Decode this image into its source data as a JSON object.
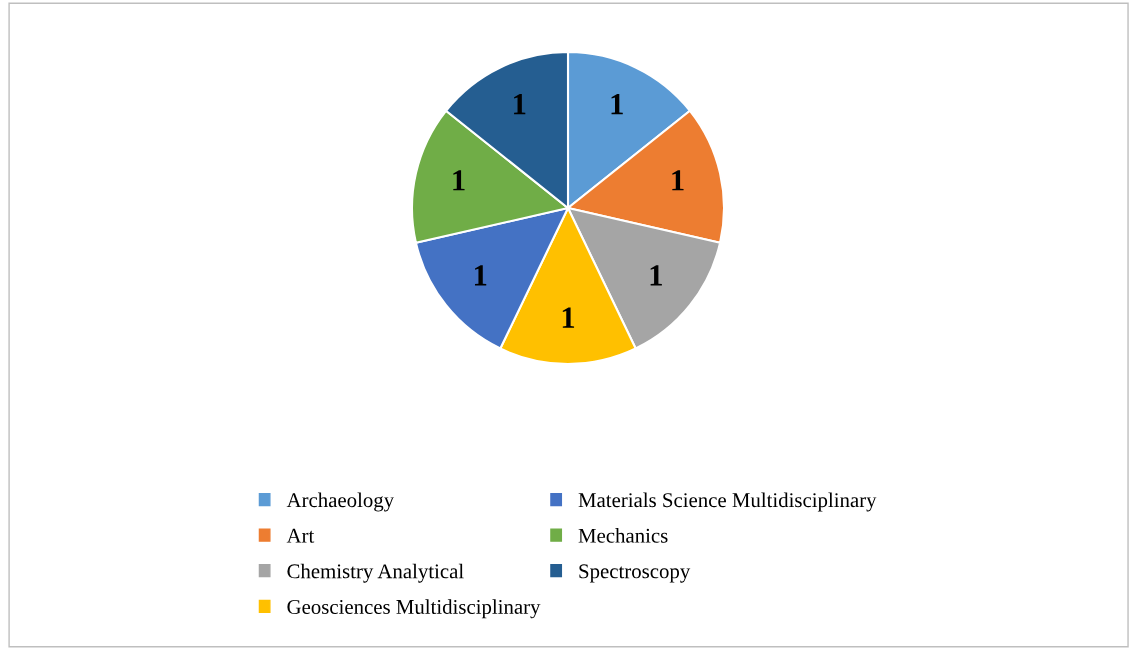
{
  "chart_data": {
    "type": "pie",
    "categories": [
      "Archaeology",
      "Art",
      "Chemistry Analytical",
      "Geosciences Multidisciplinary",
      "Materials Science Multidisciplinary",
      "Mechanics",
      "Spectroscopy"
    ],
    "values": [
      1,
      1,
      1,
      1,
      1,
      1,
      1
    ],
    "colors": [
      "#5b9bd5",
      "#ed7d31",
      "#a5a5a5",
      "#ffc000",
      "#4472c4",
      "#70ad47",
      "#255e91"
    ],
    "data_labels": true,
    "legend": "bottom"
  }
}
